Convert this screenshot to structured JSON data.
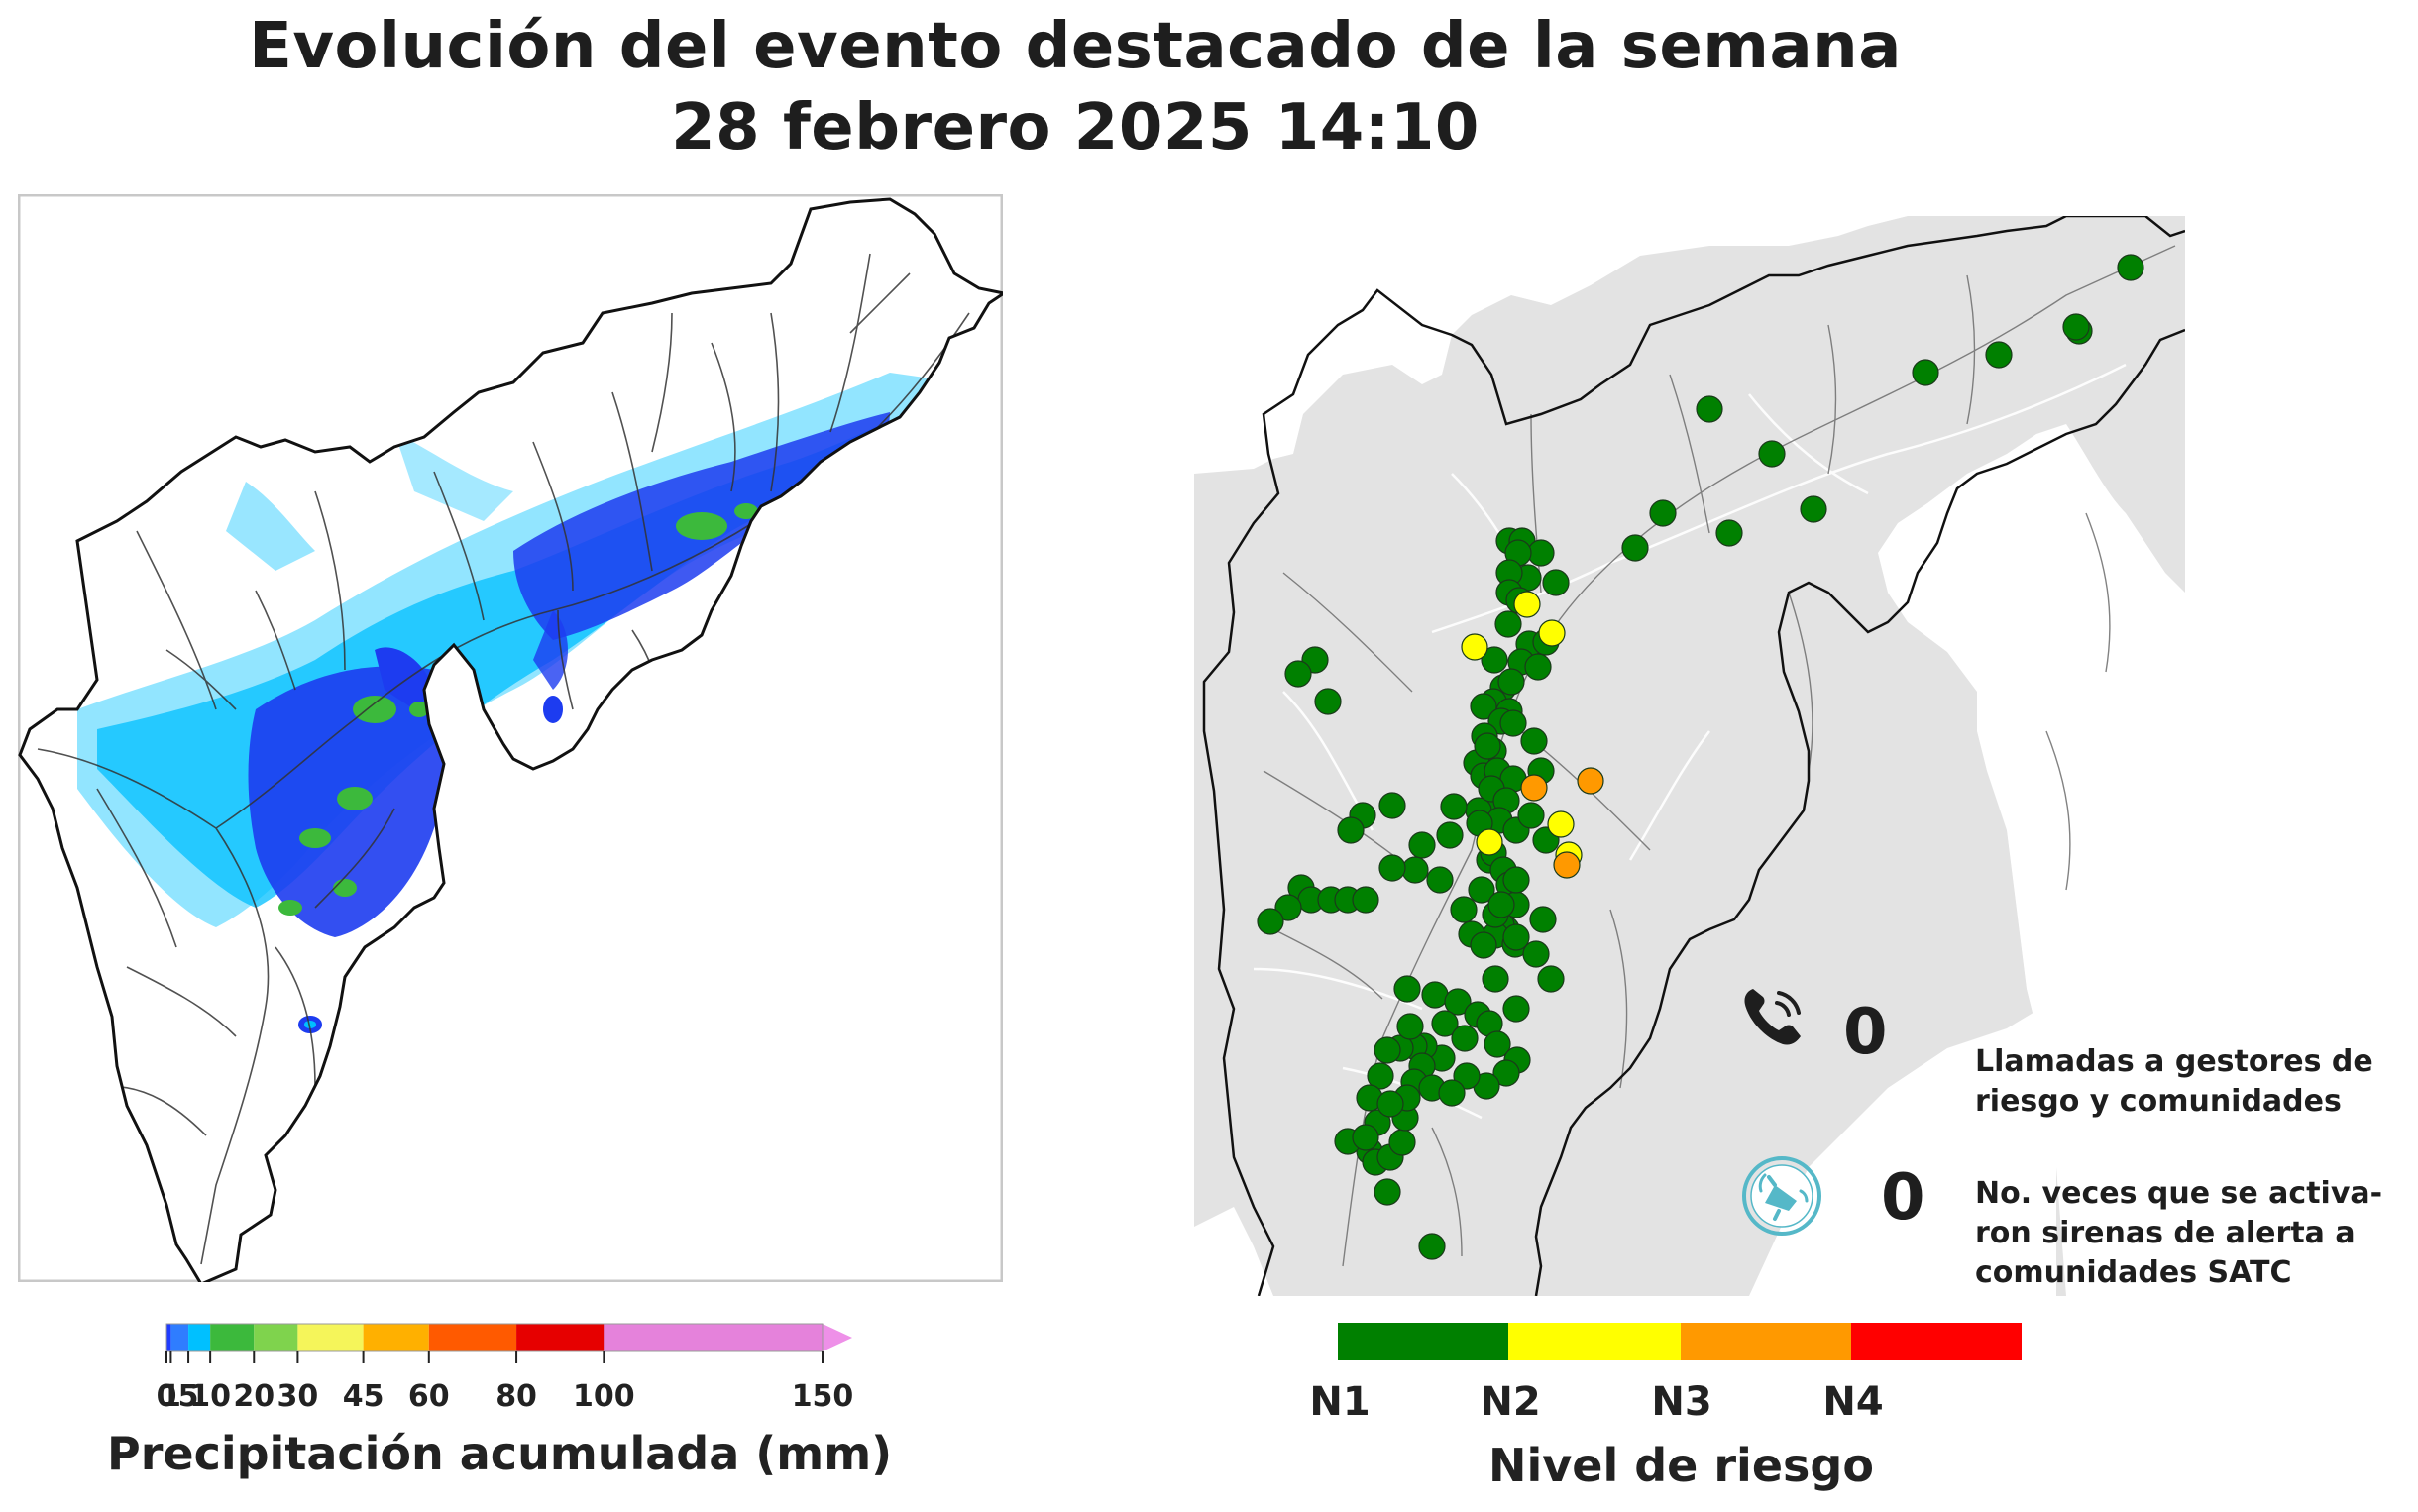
{
  "title": {
    "line1": "Evolución del evento destacado de la semana",
    "line2": "28 febrero 2025 14:10"
  },
  "precip_colorbar": {
    "title": "Precipitación acumulada (mm)",
    "tick_labels": [
      "0",
      "1",
      "5",
      "10",
      "20",
      "30",
      "45",
      "60",
      "80",
      "100",
      "150"
    ],
    "colors": [
      "#1f3cff",
      "#2f7dff",
      "#00c0ff",
      "#3cb93c",
      "#7fd34d",
      "#f5f55a",
      "#ffb000",
      "#ff5a00",
      "#e60000",
      "#8c0064",
      "#5a0078",
      "#ee90e8"
    ]
  },
  "risk_colorbar": {
    "title": "Nivel de riesgo",
    "levels": [
      "N1",
      "N2",
      "N3",
      "N4"
    ],
    "colors": [
      "#008000",
      "#ffff00",
      "#ff9900",
      "#ff0000"
    ]
  },
  "stats": {
    "calls_value": "0",
    "calls_label": "Llamadas a gestores de\nriesgo y comunidades",
    "sirens_value": "0",
    "sirens_label": "No. veces que se activa-\nron sirenas de alerta a\ncomunidades SATC"
  },
  "icons": {
    "calls": "phone-icon",
    "sirens": "siren-icon"
  },
  "station_counts_visible": {
    "N1": 118,
    "N2": 7,
    "N3": 3,
    "N4": 0
  }
}
